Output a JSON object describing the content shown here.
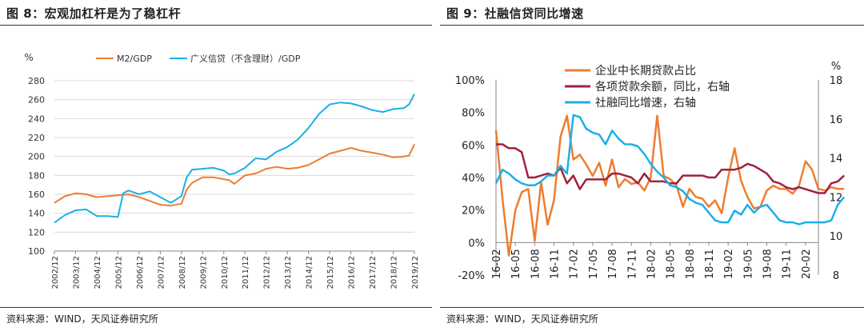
{
  "left_panel": {
    "title": "图 8：宏观加杠杆是为了稳杠杆",
    "source": "资料来源：WIND，天风证券研究所"
  },
  "right_panel": {
    "title": "图 9：社融信贷同比增速",
    "source": "资料来源：WIND，天风证券研究所"
  },
  "colors": {
    "orange": "#ed7d31",
    "blue": "#1ab0e8",
    "darkred": "#a0213e",
    "rule": "#1f3a64"
  },
  "chart_data": [
    {
      "type": "line",
      "ylabel": "%",
      "ylim": [
        100,
        280
      ],
      "yticks": [
        100,
        120,
        140,
        160,
        180,
        200,
        220,
        240,
        260,
        280
      ],
      "xrange": [
        "2002-12",
        "2019-12"
      ],
      "xtick_labels": [
        "2002/12",
        "2003/12",
        "2004/12",
        "2005/12",
        "2006/12",
        "2007/12",
        "2008/12",
        "2009/12",
        "2010/12",
        "2011/12",
        "2012/12",
        "2013/12",
        "2014/12",
        "2015/12",
        "2016/12",
        "2017/12",
        "2018/12",
        "2019/12"
      ],
      "legend_position": "top",
      "series": [
        {
          "name": "M2/GDP",
          "color": "#ed7d31",
          "x": [
            "2002-12",
            "2003-06",
            "2003-12",
            "2004-06",
            "2004-12",
            "2005-06",
            "2005-12",
            "2006-06",
            "2006-12",
            "2007-06",
            "2007-12",
            "2008-06",
            "2008-12",
            "2009-03",
            "2009-06",
            "2009-12",
            "2010-06",
            "2010-12",
            "2011-03",
            "2011-06",
            "2011-12",
            "2012-06",
            "2012-12",
            "2013-06",
            "2013-12",
            "2014-06",
            "2014-12",
            "2015-06",
            "2015-12",
            "2016-06",
            "2016-12",
            "2017-06",
            "2017-12",
            "2018-06",
            "2018-12",
            "2019-06",
            "2019-09",
            "2019-12"
          ],
          "values": [
            151,
            158,
            161,
            160,
            157,
            158,
            159,
            160,
            157,
            153,
            149,
            148,
            150,
            165,
            172,
            178,
            178,
            176,
            175,
            171,
            180,
            182,
            187,
            189,
            187,
            188,
            191,
            197,
            203,
            206,
            209,
            206,
            204,
            202,
            199,
            200,
            201,
            213
          ]
        },
        {
          "name": "广义信贷（不含理财）/GDP",
          "color": "#1ab0e8",
          "x": [
            "2002-12",
            "2003-06",
            "2003-12",
            "2004-06",
            "2004-12",
            "2005-06",
            "2005-12",
            "2006-03",
            "2006-06",
            "2006-12",
            "2007-06",
            "2007-12",
            "2008-06",
            "2008-12",
            "2009-03",
            "2009-06",
            "2009-12",
            "2010-06",
            "2010-12",
            "2011-03",
            "2011-06",
            "2011-12",
            "2012-06",
            "2012-12",
            "2013-06",
            "2013-12",
            "2014-06",
            "2014-12",
            "2015-06",
            "2015-12",
            "2016-06",
            "2016-12",
            "2017-06",
            "2017-12",
            "2018-06",
            "2018-12",
            "2019-06",
            "2019-09",
            "2019-12"
          ],
          "values": [
            130,
            138,
            143,
            144,
            137,
            137,
            136,
            161,
            164,
            160,
            163,
            157,
            151,
            158,
            178,
            186,
            187,
            188,
            185,
            181,
            182,
            188,
            198,
            197,
            205,
            210,
            218,
            230,
            245,
            255,
            257,
            256,
            253,
            249,
            247,
            250,
            251,
            255,
            266
          ]
        }
      ]
    },
    {
      "type": "line",
      "ylim_left": [
        -20,
        100
      ],
      "yticks_left": [
        "-20%",
        "0%",
        "20%",
        "40%",
        "60%",
        "80%",
        "100%"
      ],
      "ylabel_right": "%",
      "ylim_right": [
        8,
        18
      ],
      "yticks_right": [
        8,
        10,
        12,
        14,
        16,
        18
      ],
      "xrange": [
        "2016-02",
        "2020-04"
      ],
      "xtick_labels": [
        "16-02",
        "16-05",
        "16-08",
        "16-11",
        "17-02",
        "17-05",
        "17-08",
        "17-11",
        "18-02",
        "18-05",
        "18-08",
        "18-11",
        "19-02",
        "19-05",
        "19-08",
        "19-11",
        "20-02"
      ],
      "legend_position": "top-left",
      "series": [
        {
          "name": "企业中长期贷款占比",
          "axis": "left",
          "color": "#ed7d31",
          "values": [
            69,
            27,
            -8,
            20,
            31,
            33,
            1,
            37,
            11,
            26,
            65,
            78,
            51,
            54,
            48,
            41,
            49,
            35,
            51,
            34,
            39,
            36,
            37,
            32,
            40,
            78,
            41,
            39,
            35,
            22,
            33,
            28,
            27,
            22,
            26,
            18,
            40,
            58,
            38,
            28,
            21,
            22,
            32,
            35,
            33,
            33,
            30,
            35,
            50,
            45,
            33,
            32,
            34,
            33,
            33
          ]
        },
        {
          "name": "各项贷款余额，同比，右轴",
          "axis": "right",
          "color": "#a0213e",
          "values": [
            14.7,
            14.7,
            14.5,
            14.5,
            14.3,
            13.0,
            13.0,
            13.1,
            13.2,
            13.1,
            13.5,
            12.7,
            13.1,
            12.4,
            12.9,
            12.9,
            12.9,
            12.9,
            13.2,
            13.2,
            13.1,
            13.0,
            12.7,
            13.2,
            12.8,
            12.8,
            12.8,
            12.7,
            12.7,
            13.1,
            13.1,
            13.1,
            13.1,
            13.0,
            13.0,
            13.4,
            13.4,
            13.4,
            13.5,
            13.7,
            13.6,
            13.4,
            13.2,
            12.8,
            12.7,
            12.5,
            12.4,
            12.5,
            12.4,
            12.3,
            12.2,
            12.2,
            12.7,
            12.8,
            13.1
          ]
        },
        {
          "name": "社融同比增速，右轴",
          "axis": "right",
          "color": "#1ab0e8",
          "values": [
            12.7,
            13.4,
            13.2,
            12.9,
            12.7,
            12.6,
            12.6,
            12.8,
            13.1,
            13.1,
            13.6,
            13.2,
            16.2,
            16.1,
            15.5,
            15.3,
            15.2,
            14.7,
            15.4,
            15.0,
            14.7,
            14.7,
            14.6,
            14.2,
            13.7,
            13.3,
            13.0,
            12.6,
            12.5,
            12.3,
            11.9,
            11.7,
            11.6,
            11.2,
            10.8,
            10.7,
            10.7,
            11.3,
            11.1,
            11.6,
            11.2,
            11.5,
            11.6,
            11.2,
            10.8,
            10.7,
            10.7,
            10.6,
            10.7,
            10.7,
            10.7,
            10.7,
            10.8,
            11.6,
            12.0
          ]
        }
      ]
    }
  ]
}
